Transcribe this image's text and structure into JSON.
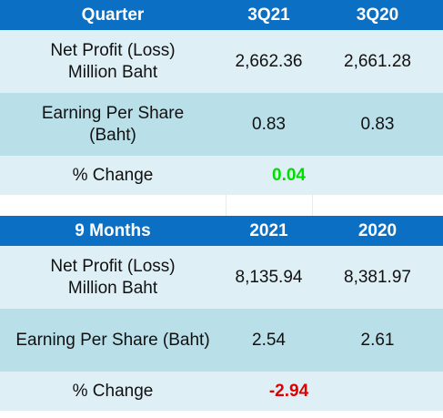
{
  "quarter_table": {
    "header": {
      "label": "Quarter",
      "col1": "3Q21",
      "col2": "3Q20"
    },
    "rows": [
      {
        "label_line1": "Net Profit (Loss)",
        "label_line2": "Million Baht",
        "v1": "2,662.36",
        "v2": "2,661.28"
      },
      {
        "label_line1": "Earning Per Share",
        "label_line2": "(Baht)",
        "v1": "0.83",
        "v2": "0.83"
      }
    ],
    "change": {
      "label": "% Change",
      "value": "0.04",
      "color": "#00dd00"
    }
  },
  "nine_months_table": {
    "header": {
      "label": "9 Months",
      "col1": "2021",
      "col2": "2020"
    },
    "rows": [
      {
        "label_line1": "Net Profit (Loss)",
        "label_line2": "Million Baht",
        "v1": "8,135.94",
        "v2": "8,381.97"
      },
      {
        "label": "Earning Per Share (Baht)",
        "v1": "2.54",
        "v2": "2.61"
      }
    ],
    "change": {
      "label": "% Change",
      "value": "-2.94",
      "color": "#e00000"
    }
  },
  "colors": {
    "header_bg": "#0b6fc4",
    "row_light": "#deeff5",
    "row_mid": "#b9dfe9"
  }
}
